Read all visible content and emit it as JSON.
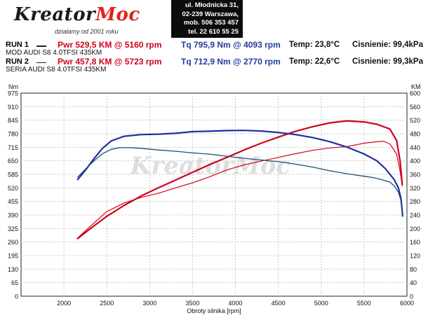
{
  "header": {
    "logo_main": "Kreator",
    "logo_accent": "Moc",
    "logo_tagline": "działamy od 2001 roku",
    "address_lines": [
      "ul. Młodnicka 31,",
      "02-239 Warszawa,",
      "mob. 506 353 457",
      "tel. 22 610 55 25"
    ]
  },
  "runs": [
    {
      "label": "RUN 1",
      "name": "MOD AUDI S8 4.0TFSI 435KM",
      "pwr": "Pwr  529,5 KM @ 5160 rpm",
      "tq": "Tq  795,9 Nm @ 4093 rpm",
      "temp": "Temp: 23,8°C",
      "pressure": "Cisnienie: 99,4kPa"
    },
    {
      "label": "RUN 2",
      "name": "SERIA AUDI S8 4.0TFSI 435KM",
      "pwr": "Pwr  457,8 KM @ 5723 rpm",
      "tq": "Tq  712,9 Nm @ 2770 rpm",
      "temp": "Temp: 22,6°C",
      "pressure": "Cisnienie: 99,3kPa"
    }
  ],
  "chart_data": {
    "type": "line",
    "xlabel": "Obroty silnika [rpm]",
    "ylabel_left": "Nm",
    "ylabel_right": "KM",
    "xlim": [
      1500,
      6000
    ],
    "x_ticks": [
      2000,
      2500,
      3000,
      3500,
      4000,
      4500,
      5000,
      5500,
      6000
    ],
    "ylim_left": [
      0,
      975
    ],
    "y_ticks_left": [
      0,
      65,
      130,
      195,
      260,
      325,
      390,
      455,
      520,
      585,
      650,
      715,
      780,
      845,
      910,
      975
    ],
    "ylim_right": [
      0,
      600
    ],
    "y_ticks_right": [
      0,
      40,
      80,
      120,
      160,
      200,
      240,
      280,
      320,
      360,
      400,
      440,
      480,
      520,
      560,
      600
    ],
    "grid": true,
    "colors": {
      "power": "#d0021b",
      "torque_mod": "#1f2fa0",
      "torque_stock": "#1c4e6e",
      "grid": "#c8c8c8"
    },
    "series": [
      {
        "name": "RUN 1",
        "quantity": "power",
        "axis": "right",
        "color": "#d0021b",
        "width": 2.2,
        "x": [
          2160,
          2300,
          2500,
          2700,
          2900,
          3100,
          3300,
          3500,
          3700,
          3900,
          4100,
          4300,
          4500,
          4700,
          4900,
          5100,
          5300,
          5500,
          5650,
          5800,
          5880,
          5920,
          5945
        ],
        "y": [
          170,
          198,
          236,
          268,
          296,
          320,
          343,
          366,
          389,
          410,
          432,
          452,
          470,
          487,
          501,
          512,
          518,
          515,
          508,
          494,
          460,
          400,
          330
        ]
      },
      {
        "name": "RUN 2",
        "quantity": "power",
        "axis": "right",
        "color": "#d0021b",
        "width": 1.2,
        "x": [
          2160,
          2300,
          2500,
          2700,
          2900,
          3100,
          3300,
          3500,
          3700,
          3900,
          4100,
          4300,
          4500,
          4700,
          4900,
          5100,
          5300,
          5500,
          5600,
          5723,
          5800,
          5880,
          5920,
          5945
        ],
        "y": [
          172,
          205,
          250,
          275,
          292,
          304,
          320,
          335,
          353,
          373,
          388,
          399,
          410,
          421,
          431,
          438,
          442,
          452,
          455,
          458,
          450,
          420,
          370,
          325
        ]
      },
      {
        "name": "RUN 1",
        "quantity": "torque",
        "axis": "left",
        "color": "#1f2fa0",
        "width": 2.2,
        "x": [
          2160,
          2250,
          2350,
          2450,
          2550,
          2700,
          2900,
          3100,
          3300,
          3500,
          3700,
          3900,
          4093,
          4300,
          4500,
          4700,
          4900,
          5100,
          5300,
          5500,
          5650,
          5750,
          5850,
          5900,
          5930,
          5950
        ],
        "y": [
          560,
          605,
          660,
          710,
          745,
          768,
          776,
          778,
          782,
          790,
          792,
          795,
          796,
          793,
          786,
          776,
          762,
          742,
          716,
          683,
          650,
          612,
          560,
          520,
          470,
          385
        ]
      },
      {
        "name": "RUN 2",
        "quantity": "torque",
        "axis": "left",
        "color": "#1c4e6e",
        "width": 1.3,
        "x": [
          2160,
          2250,
          2350,
          2450,
          2550,
          2650,
          2770,
          2900,
          3100,
          3300,
          3500,
          3700,
          3900,
          4100,
          4300,
          4500,
          4700,
          4900,
          5100,
          5300,
          5500,
          5600,
          5700,
          5800,
          5850,
          5900,
          5930,
          5950
        ],
        "y": [
          572,
          610,
          650,
          684,
          705,
          713,
          713,
          710,
          702,
          696,
          688,
          682,
          672,
          662,
          654,
          646,
          634,
          620,
          602,
          588,
          576,
          570,
          560,
          548,
          530,
          500,
          460,
          385
        ]
      }
    ],
    "watermark": "KreatorMoc"
  }
}
